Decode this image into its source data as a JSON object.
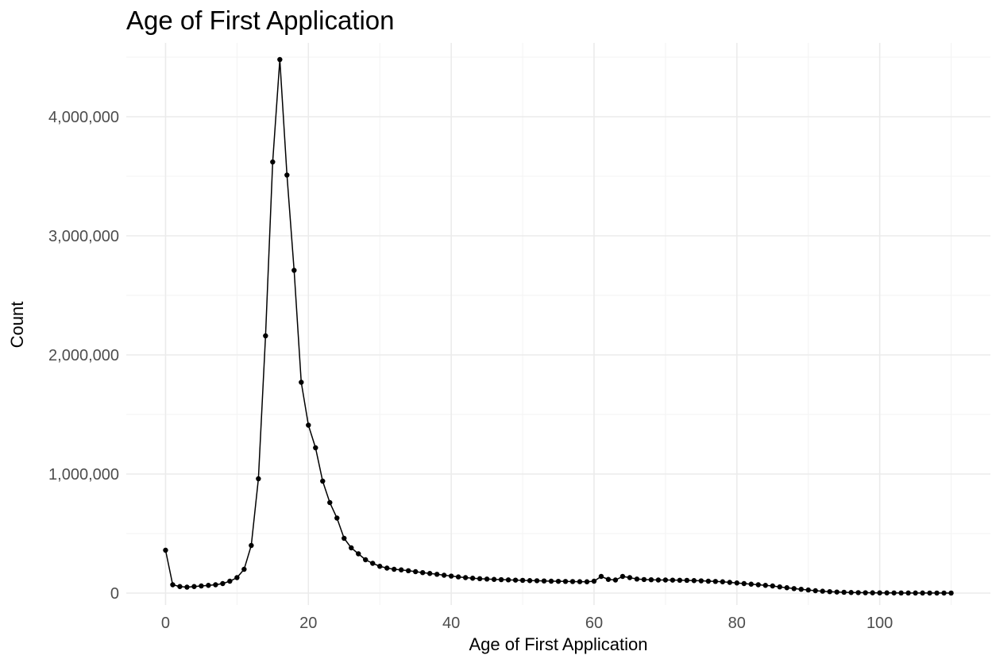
{
  "chart_data": {
    "type": "line",
    "title": "Age of First Application",
    "xlabel": "Age of First Application",
    "ylabel": "Count",
    "xlim": [
      -5.5,
      115.5
    ],
    "ylim": [
      -100000,
      4620000
    ],
    "x_ticks": [
      0,
      20,
      40,
      60,
      80,
      100
    ],
    "x_tick_labels": [
      "0",
      "20",
      "40",
      "60",
      "80",
      "100"
    ],
    "y_ticks": [
      0,
      1000000,
      2000000,
      3000000,
      4000000
    ],
    "y_tick_labels": [
      "0",
      "1,000,000",
      "2,000,000",
      "3,000,000",
      "4,000,000"
    ],
    "grid": true,
    "legend": "none",
    "series": [
      {
        "color": "#000000",
        "x": [
          0,
          1,
          2,
          3,
          4,
          5,
          6,
          7,
          8,
          9,
          10,
          11,
          12,
          13,
          14,
          15,
          16,
          17,
          18,
          19,
          20,
          21,
          22,
          23,
          24,
          25,
          26,
          27,
          28,
          29,
          30,
          31,
          32,
          33,
          34,
          35,
          36,
          37,
          38,
          39,
          40,
          41,
          42,
          43,
          44,
          45,
          46,
          47,
          48,
          49,
          50,
          51,
          52,
          53,
          54,
          55,
          56,
          57,
          58,
          59,
          60,
          61,
          62,
          63,
          64,
          65,
          66,
          67,
          68,
          69,
          70,
          71,
          72,
          73,
          74,
          75,
          76,
          77,
          78,
          79,
          80,
          81,
          82,
          83,
          84,
          85,
          86,
          87,
          88,
          89,
          90,
          91,
          92,
          93,
          94,
          95,
          96,
          97,
          98,
          99,
          100,
          101,
          102,
          103,
          104,
          105,
          106,
          107,
          108,
          109,
          110
        ],
        "y": [
          360000,
          70000,
          55000,
          50000,
          55000,
          60000,
          65000,
          70000,
          80000,
          100000,
          130000,
          200000,
          400000,
          960000,
          2160000,
          3620000,
          4480000,
          3510000,
          2710000,
          1770000,
          1410000,
          1220000,
          940000,
          760000,
          630000,
          460000,
          380000,
          330000,
          280000,
          250000,
          225000,
          210000,
          200000,
          195000,
          188000,
          180000,
          172000,
          165000,
          158000,
          150000,
          143000,
          136000,
          130000,
          125000,
          121000,
          118000,
          115000,
          113000,
          111000,
          109000,
          107000,
          105000,
          104000,
          102000,
          100000,
          99000,
          98000,
          97000,
          96000,
          95000,
          100000,
          140000,
          115000,
          110000,
          140000,
          130000,
          118000,
          114000,
          112000,
          110000,
          110000,
          109000,
          108000,
          107000,
          105000,
          103000,
          100000,
          98000,
          95000,
          90000,
          85000,
          80000,
          75000,
          70000,
          65000,
          60000,
          52000,
          45000,
          38000,
          32000,
          26000,
          20000,
          16000,
          12000,
          9000,
          7000,
          5000,
          4000,
          3000,
          2500,
          2000,
          1800,
          1500,
          1200,
          1000,
          900,
          800,
          700,
          600,
          500,
          400
        ]
      }
    ]
  }
}
